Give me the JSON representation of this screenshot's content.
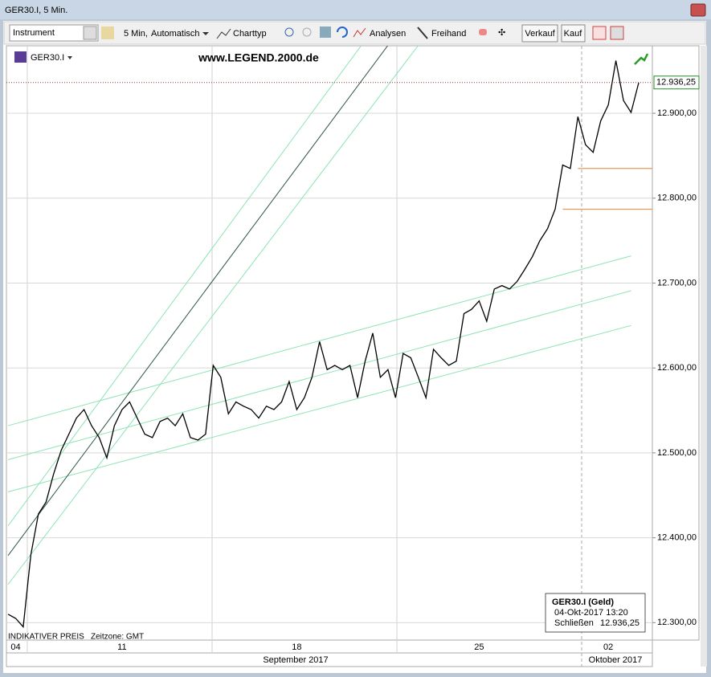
{
  "window": {
    "title": "GER30.I, 5 Min."
  },
  "toolbar": {
    "instrument": "Instrument",
    "interval": "5 Min,",
    "mode": "Automatisch",
    "chart_type": "Charttyp",
    "analyses": "Analysen",
    "freehand": "Freihand",
    "sell": "Verkauf",
    "buy": "Kauf"
  },
  "chart_data": {
    "type": "line",
    "watermark": "www.LEGEND.2000.de",
    "footer": [
      "INDIKATIVER PREIS",
      "Zeitzone: GMT"
    ],
    "categories": [
      null,
      "04",
      null,
      null,
      null,
      null,
      null,
      null,
      null,
      null,
      null,
      null,
      null,
      null,
      null,
      "11",
      null,
      null,
      null,
      null,
      null,
      null,
      null,
      null,
      null,
      null,
      null,
      null,
      null,
      null,
      null,
      null,
      null,
      null,
      null,
      null,
      null,
      null,
      "18",
      null,
      null,
      null,
      null,
      null,
      null,
      null,
      null,
      null,
      null,
      null,
      null,
      null,
      null,
      null,
      null,
      null,
      null,
      null,
      null,
      null,
      null,
      null,
      "25",
      null,
      null,
      null,
      null,
      null,
      null,
      null,
      null,
      null,
      null,
      null,
      null,
      null,
      null,
      null,
      null,
      "02",
      null,
      null,
      null,
      null
    ],
    "month_labels": [
      "September 2017",
      "Oktober 2017"
    ],
    "series": [
      {
        "name": "GER30.I",
        "color": "#000000",
        "values": [
          12310,
          12305,
          12295,
          12380,
          12428,
          12442,
          12475,
          12503,
          12522,
          12541,
          12551,
          12532,
          12518,
          12494,
          12532,
          12551,
          12560,
          12541,
          12522,
          12518,
          12537,
          12541,
          12532,
          12546,
          12518,
          12515,
          12522,
          12603,
          12589,
          12546,
          12560,
          12555,
          12551,
          12541,
          12555,
          12551,
          12560,
          12584,
          12551,
          12565,
          12589,
          12631,
          12598,
          12603,
          12598,
          12603,
          12565,
          12608,
          12641,
          12589,
          12598,
          12565,
          12617,
          12612,
          12589,
          12565,
          12622,
          12612,
          12603,
          12608,
          12664,
          12669,
          12679,
          12655,
          12693,
          12697,
          12693,
          12702,
          12716,
          12731,
          12750,
          12764,
          12787,
          12839,
          12835,
          12896,
          12863,
          12854,
          12891,
          12910,
          12962,
          12915,
          12901,
          12936
        ]
      }
    ],
    "ylim": [
      12279.5,
      12979.5
    ],
    "yticks": [
      {
        "value": 12300,
        "label": "12.300,00"
      },
      {
        "value": 12400,
        "label": "12.400,00"
      },
      {
        "value": 12500,
        "label": "12.500,00"
      },
      {
        "value": 12600,
        "label": "12.600,00"
      },
      {
        "value": 12700,
        "label": "12.700,00"
      },
      {
        "value": 12800,
        "label": "12.800,00"
      },
      {
        "value": 12900,
        "label": "12.900,00"
      }
    ],
    "grid": true,
    "trend_lines": [
      {
        "color": "#8de4b4",
        "x": [
          0,
          82
        ],
        "y": [
          12454,
          12650
        ]
      },
      {
        "color": "#8de4b4",
        "x": [
          0,
          82
        ],
        "y": [
          12492,
          12691
        ]
      },
      {
        "color": "#8de4b4",
        "x": [
          0,
          82
        ],
        "y": [
          12532,
          12732
        ]
      },
      {
        "color": "#8de4b4",
        "x": [
          0,
          46.5
        ],
        "y": [
          12414,
          12980
        ]
      },
      {
        "color": "#8de4b4",
        "x": [
          0,
          54
        ],
        "y": [
          12345,
          12980
        ]
      },
      {
        "color": "#2d5545",
        "x": [
          0,
          50
        ],
        "y": [
          12379,
          12980
        ]
      }
    ],
    "levels": [
      {
        "value": 12835,
        "from": 75,
        "color": "#e89a5a"
      },
      {
        "value": 12787,
        "from": 73,
        "color": "#e89a5a"
      }
    ],
    "last_price": {
      "value": 12936.25,
      "label": "12.936,25",
      "color": "#2a8a2a"
    },
    "info_box": {
      "title": "GER30.I (Geld)",
      "time": "04-Okt-2017 13:20",
      "close_label": "Schließen"
    }
  }
}
